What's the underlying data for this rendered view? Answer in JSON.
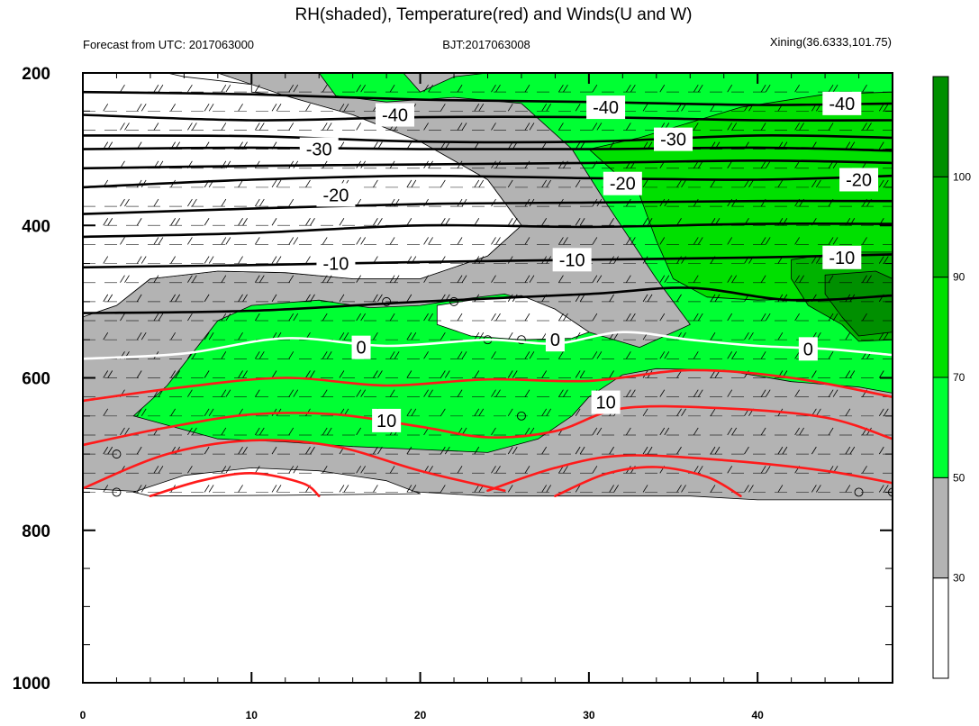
{
  "header": {
    "title": "RH(shaded), Temperature(red) and Winds(U and W)",
    "forecast": "Forecast from UTC: 2017063000",
    "bjt": "BJT:2017063008",
    "station": "Xining(36.6333,101.75)"
  },
  "colors": {
    "white": "#ffffff",
    "gray": "#b3b3b3",
    "green_light": "#00ff33",
    "green_mid": "#00e000",
    "green_dark": "#00b300",
    "green_darkest": "#008f00",
    "temp_cold": "#000000",
    "temp_zero": "#ffffff",
    "temp_warm": "#ff1a1a"
  },
  "chart_data": {
    "type": "heatmap",
    "title": "RH(shaded), Temperature(red) and Winds(U and W)",
    "xlabel": "",
    "ylabel": "",
    "xlim": [
      0,
      48
    ],
    "ylim": [
      1000,
      200
    ],
    "x_ticks": [
      "0",
      "10",
      "20",
      "30",
      "40"
    ],
    "y_ticks": [
      "200",
      "400",
      "600",
      "800",
      "1000"
    ],
    "colorbar": {
      "labels": [
        "30",
        "50",
        "70",
        "90",
        "100"
      ],
      "levels": [
        30,
        50,
        70,
        90,
        100
      ]
    },
    "rh_regions": [
      {
        "level": "gray",
        "points": [
          [
            0,
            520
          ],
          [
            2,
            505
          ],
          [
            4,
            470
          ],
          [
            8,
            460
          ],
          [
            12,
            462
          ],
          [
            16,
            470
          ],
          [
            20,
            470
          ],
          [
            24,
            440
          ],
          [
            26,
            400
          ],
          [
            24,
            340
          ],
          [
            20,
            290
          ],
          [
            16,
            255
          ],
          [
            12,
            230
          ],
          [
            8,
            200
          ],
          [
            0,
            200
          ],
          [
            0,
            200
          ],
          [
            30,
            200
          ],
          [
            34,
            200
          ],
          [
            40,
            200
          ],
          [
            48,
            200
          ],
          [
            48,
            760
          ],
          [
            44,
            760
          ],
          [
            40,
            760
          ],
          [
            36,
            755
          ],
          [
            32,
            755
          ],
          [
            28,
            755
          ],
          [
            24,
            755
          ],
          [
            20,
            750
          ],
          [
            16,
            740
          ],
          [
            12,
            740
          ],
          [
            8,
            740
          ],
          [
            4,
            750
          ],
          [
            0,
            745
          ]
        ]
      },
      {
        "level": "white",
        "points": [
          [
            0,
            520
          ],
          [
            2,
            505
          ],
          [
            4,
            470
          ],
          [
            8,
            460
          ],
          [
            12,
            462
          ],
          [
            16,
            470
          ],
          [
            20,
            470
          ],
          [
            24,
            440
          ],
          [
            26,
            400
          ],
          [
            24,
            340
          ],
          [
            20,
            290
          ],
          [
            16,
            255
          ],
          [
            12,
            230
          ],
          [
            10,
            225
          ],
          [
            10,
            215
          ],
          [
            6,
            205
          ],
          [
            5,
            200
          ],
          [
            0,
            200
          ]
        ]
      },
      {
        "level": "white",
        "points": [
          [
            3,
            750
          ],
          [
            6,
            728
          ],
          [
            10,
            718
          ],
          [
            14,
            722
          ],
          [
            18,
            735
          ],
          [
            20,
            752
          ],
          [
            12,
            754
          ],
          [
            4,
            755
          ]
        ]
      },
      {
        "level": "green_light",
        "points": [
          [
            14,
            200
          ],
          [
            19,
            200
          ],
          [
            20,
            225
          ],
          [
            22,
            205
          ],
          [
            24,
            200
          ],
          [
            48,
            200
          ],
          [
            48,
            620
          ],
          [
            46,
            612
          ],
          [
            42,
            605
          ],
          [
            38,
            590
          ],
          [
            34,
            588
          ],
          [
            32,
            596
          ],
          [
            30,
            625
          ],
          [
            29,
            650
          ],
          [
            27,
            680
          ],
          [
            24,
            698
          ],
          [
            20,
            694
          ],
          [
            16,
            690
          ],
          [
            12,
            684
          ],
          [
            8,
            680
          ],
          [
            5,
            662
          ],
          [
            3,
            650
          ],
          [
            5,
            610
          ],
          [
            8,
            525
          ],
          [
            10,
            505
          ],
          [
            14,
            498
          ],
          [
            17,
            508
          ],
          [
            20,
            505
          ],
          [
            22,
            498
          ],
          [
            25,
            490
          ],
          [
            28,
            510
          ],
          [
            30,
            540
          ],
          [
            33,
            560
          ],
          [
            36,
            530
          ],
          [
            34,
            470
          ],
          [
            31,
            370
          ],
          [
            29,
            300
          ],
          [
            26,
            240
          ],
          [
            22,
            232
          ],
          [
            18,
            238
          ],
          [
            15,
            230
          ]
        ]
      },
      {
        "level": "white",
        "points": [
          [
            21,
            505
          ],
          [
            23,
            498
          ],
          [
            26,
            492
          ],
          [
            28,
            510
          ],
          [
            30,
            540
          ],
          [
            29,
            548
          ],
          [
            26,
            550
          ],
          [
            23,
            545
          ],
          [
            21,
            530
          ]
        ]
      },
      {
        "level": "green_mid",
        "points": [
          [
            30,
            300
          ],
          [
            33,
            285
          ],
          [
            36,
            265
          ],
          [
            39,
            245
          ],
          [
            44,
            228
          ],
          [
            48,
            225
          ],
          [
            48,
            500
          ],
          [
            44,
            496
          ],
          [
            40,
            498
          ],
          [
            37,
            494
          ],
          [
            35,
            470
          ],
          [
            34,
            420
          ],
          [
            33,
            360
          ]
        ]
      },
      {
        "level": "green_dark",
        "points": [
          [
            42,
            445
          ],
          [
            45,
            435
          ],
          [
            48,
            435
          ],
          [
            48,
            550
          ],
          [
            46,
            552
          ],
          [
            45,
            530
          ],
          [
            43,
            505
          ],
          [
            42,
            470
          ]
        ]
      },
      {
        "level": "green_darkest",
        "points": [
          [
            44,
            465
          ],
          [
            47,
            460
          ],
          [
            48,
            470
          ],
          [
            48,
            540
          ],
          [
            46,
            545
          ],
          [
            45,
            520
          ],
          [
            44,
            490
          ]
        ]
      }
    ],
    "temperature_lines": [
      {
        "value": -40,
        "color": "black",
        "points": [
          [
            0,
            225
          ],
          [
            10,
            228
          ],
          [
            20,
            235
          ],
          [
            30,
            238
          ],
          [
            40,
            242
          ],
          [
            48,
            240
          ]
        ]
      },
      {
        "value": -40,
        "color": "black",
        "points": [
          [
            0,
            255
          ],
          [
            10,
            262
          ],
          [
            20,
            258
          ],
          [
            30,
            258
          ],
          [
            40,
            262
          ],
          [
            48,
            262
          ]
        ]
      },
      {
        "value": -30,
        "color": "black",
        "points": [
          [
            0,
            282
          ],
          [
            10,
            283
          ],
          [
            20,
            290
          ],
          [
            30,
            290
          ],
          [
            40,
            282
          ],
          [
            48,
            285
          ]
        ]
      },
      {
        "value": -30,
        "color": "black",
        "points": [
          [
            0,
            300
          ],
          [
            10,
            298
          ],
          [
            20,
            300
          ],
          [
            30,
            300
          ],
          [
            40,
            298
          ],
          [
            48,
            302
          ]
        ]
      },
      {
        "value": -20,
        "color": "black",
        "points": [
          [
            0,
            325
          ],
          [
            10,
            322
          ],
          [
            20,
            320
          ],
          [
            30,
            318
          ],
          [
            40,
            315
          ],
          [
            48,
            318
          ]
        ]
      },
      {
        "value": -20,
        "color": "black",
        "points": [
          [
            0,
            350
          ],
          [
            10,
            340
          ],
          [
            20,
            335
          ],
          [
            30,
            338
          ],
          [
            40,
            340
          ],
          [
            48,
            335
          ]
        ]
      },
      {
        "value": -10,
        "color": "black",
        "points": [
          [
            0,
            385
          ],
          [
            10,
            378
          ],
          [
            20,
            372
          ],
          [
            30,
            370
          ],
          [
            40,
            368
          ],
          [
            48,
            368
          ]
        ]
      },
      {
        "value": -10,
        "color": "black",
        "points": [
          [
            0,
            415
          ],
          [
            10,
            410
          ],
          [
            20,
            400
          ],
          [
            30,
            402
          ],
          [
            40,
            398
          ],
          [
            48,
            398
          ]
        ]
      },
      {
        "value": -10,
        "color": "black",
        "points": [
          [
            0,
            455
          ],
          [
            10,
            452
          ],
          [
            20,
            448
          ],
          [
            30,
            445
          ],
          [
            40,
            442
          ],
          [
            48,
            438
          ]
        ]
      },
      {
        "value": 0,
        "color": "black",
        "points": [
          [
            0,
            515
          ],
          [
            10,
            512
          ],
          [
            20,
            500
          ],
          [
            30,
            490
          ],
          [
            36,
            482
          ],
          [
            42,
            498
          ],
          [
            48,
            492
          ]
        ]
      },
      {
        "value": 0,
        "color": "white",
        "points": [
          [
            0,
            575
          ],
          [
            6,
            568
          ],
          [
            12,
            548
          ],
          [
            18,
            558
          ],
          [
            24,
            550
          ],
          [
            28,
            555
          ],
          [
            32,
            540
          ],
          [
            36,
            550
          ],
          [
            40,
            558
          ],
          [
            44,
            562
          ],
          [
            48,
            570
          ]
        ]
      },
      {
        "value": 10,
        "color": "red",
        "points": [
          [
            0,
            630
          ],
          [
            6,
            612
          ],
          [
            12,
            600
          ],
          [
            18,
            610
          ],
          [
            24,
            602
          ],
          [
            30,
            604
          ],
          [
            36,
            590
          ],
          [
            42,
            600
          ],
          [
            48,
            625
          ]
        ]
      },
      {
        "value": 10,
        "color": "red",
        "points": [
          [
            0,
            688
          ],
          [
            5,
            665
          ],
          [
            10,
            648
          ],
          [
            15,
            648
          ],
          [
            20,
            664
          ],
          [
            24,
            678
          ],
          [
            28,
            670
          ],
          [
            32,
            640
          ],
          [
            38,
            640
          ],
          [
            44,
            652
          ],
          [
            48,
            680
          ]
        ]
      },
      {
        "value": 10,
        "color": "red",
        "points": [
          [
            0,
            745
          ],
          [
            5,
            700
          ],
          [
            10,
            682
          ],
          [
            15,
            690
          ],
          [
            20,
            722
          ],
          [
            25,
            748
          ]
        ]
      },
      {
        "value": 10,
        "color": "red",
        "points": [
          [
            24,
            748
          ],
          [
            28,
            718
          ],
          [
            32,
            702
          ],
          [
            38,
            708
          ],
          [
            44,
            722
          ],
          [
            48,
            738
          ]
        ]
      },
      {
        "value": 10,
        "color": "red",
        "points": [
          [
            4,
            755
          ],
          [
            7,
            735
          ],
          [
            10,
            725
          ],
          [
            13,
            738
          ],
          [
            14,
            755
          ]
        ]
      },
      {
        "value": 10,
        "color": "red",
        "points": [
          [
            28,
            755
          ],
          [
            31,
            726
          ],
          [
            34,
            717
          ],
          [
            37,
            730
          ],
          [
            39,
            755
          ]
        ]
      }
    ],
    "contour_labels": [
      {
        "text": "-40",
        "x": 18.5,
        "p": 255
      },
      {
        "text": "-40",
        "x": 31,
        "p": 245
      },
      {
        "text": "-40",
        "x": 45,
        "p": 240
      },
      {
        "text": "-30",
        "x": 14,
        "p": 300
      },
      {
        "text": "-30",
        "x": 35,
        "p": 287
      },
      {
        "text": "-20",
        "x": 15,
        "p": 360
      },
      {
        "text": "-20",
        "x": 32,
        "p": 345
      },
      {
        "text": "-20",
        "x": 46,
        "p": 340
      },
      {
        "text": "-10",
        "x": 15,
        "p": 450
      },
      {
        "text": "-10",
        "x": 29,
        "p": 445
      },
      {
        "text": "-10",
        "x": 45,
        "p": 442
      },
      {
        "text": "0",
        "x": 16.5,
        "p": 560
      },
      {
        "text": "0",
        "x": 28,
        "p": 550
      },
      {
        "text": "0",
        "x": 43,
        "p": 562
      },
      {
        "text": "10",
        "x": 18,
        "p": 656
      },
      {
        "text": "10",
        "x": 31,
        "p": 632
      }
    ],
    "barb_levels": [
      225,
      250,
      275,
      300,
      325,
      350,
      375,
      400,
      425,
      450,
      475,
      500,
      525,
      550,
      575,
      600,
      625,
      650,
      675,
      700,
      725,
      750
    ],
    "calm_points": [
      [
        2,
        700
      ],
      [
        2,
        750
      ],
      [
        18,
        500
      ],
      [
        22,
        500
      ],
      [
        24,
        550
      ],
      [
        26,
        550
      ],
      [
        26,
        650
      ],
      [
        46,
        750
      ],
      [
        48,
        750
      ]
    ]
  }
}
